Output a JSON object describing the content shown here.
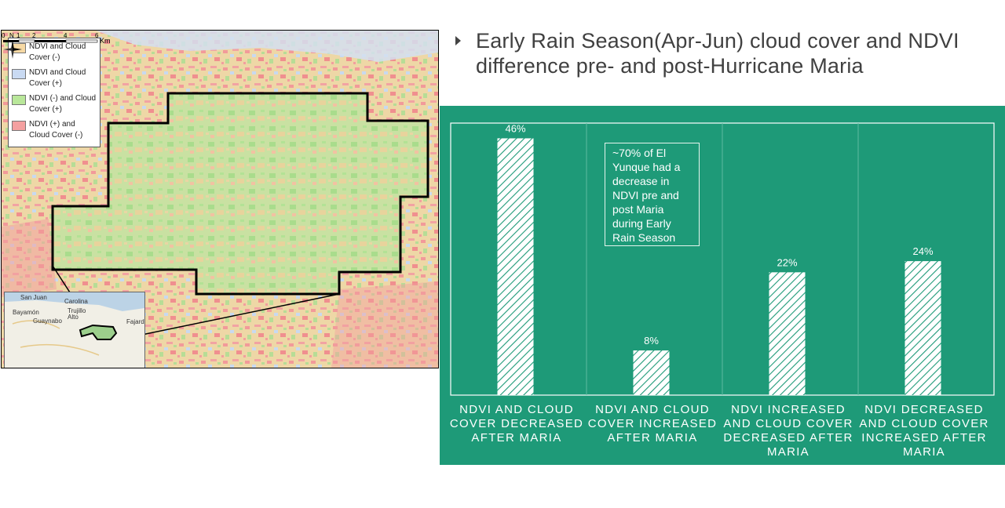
{
  "slide": {
    "title": "Early Rain Season(Apr-Jun)  cloud cover and NDVI difference pre- and post-Hurricane Maria"
  },
  "map": {
    "legend": [
      {
        "label": "NDVI and Cloud Cover (-)",
        "color": "#f6d9a4"
      },
      {
        "label": "NDVI and Cloud Cover (+)",
        "color": "#c9daf2"
      },
      {
        "label": "NDVI (-) and Cloud Cover (+)",
        "color": "#b9e79a"
      },
      {
        "label": "NDVI (+) and Cloud Cover (-)",
        "color": "#f4a0a0"
      }
    ],
    "north_label": "N",
    "scale": {
      "ticks": [
        "0",
        "1",
        "2",
        "4",
        "6"
      ],
      "unit": "Km"
    },
    "inset": {
      "places": [
        "San Juan",
        "Carolina",
        "Bayamón",
        "Trujillo Alto",
        "Guaynabo",
        "Fajardo"
      ]
    }
  },
  "chart_data": {
    "type": "bar",
    "categories": [
      "NDVI AND CLOUD COVER DECREASED AFTER MARIA",
      "NDVI AND CLOUD COVER INCREASED AFTER MARIA",
      "NDVI INCREASED AND CLOUD COVER DECREASED AFTER MARIA",
      "NDVI DECREASED AND CLOUD COVER INCREASED AFTER MARIA"
    ],
    "values": [
      46,
      8,
      22,
      24
    ],
    "data_labels": [
      "46%",
      "8%",
      "22%",
      "24%"
    ],
    "ylim": [
      0,
      48
    ],
    "annotation": "~70% of El Yunque had a decrease in NDVI pre and post Maria during Early Rain Season",
    "colors": {
      "panel": "#1e9a78",
      "bar_fill": "#ffffff",
      "hatch": "#1e9a78",
      "text": "#ffffff"
    }
  }
}
